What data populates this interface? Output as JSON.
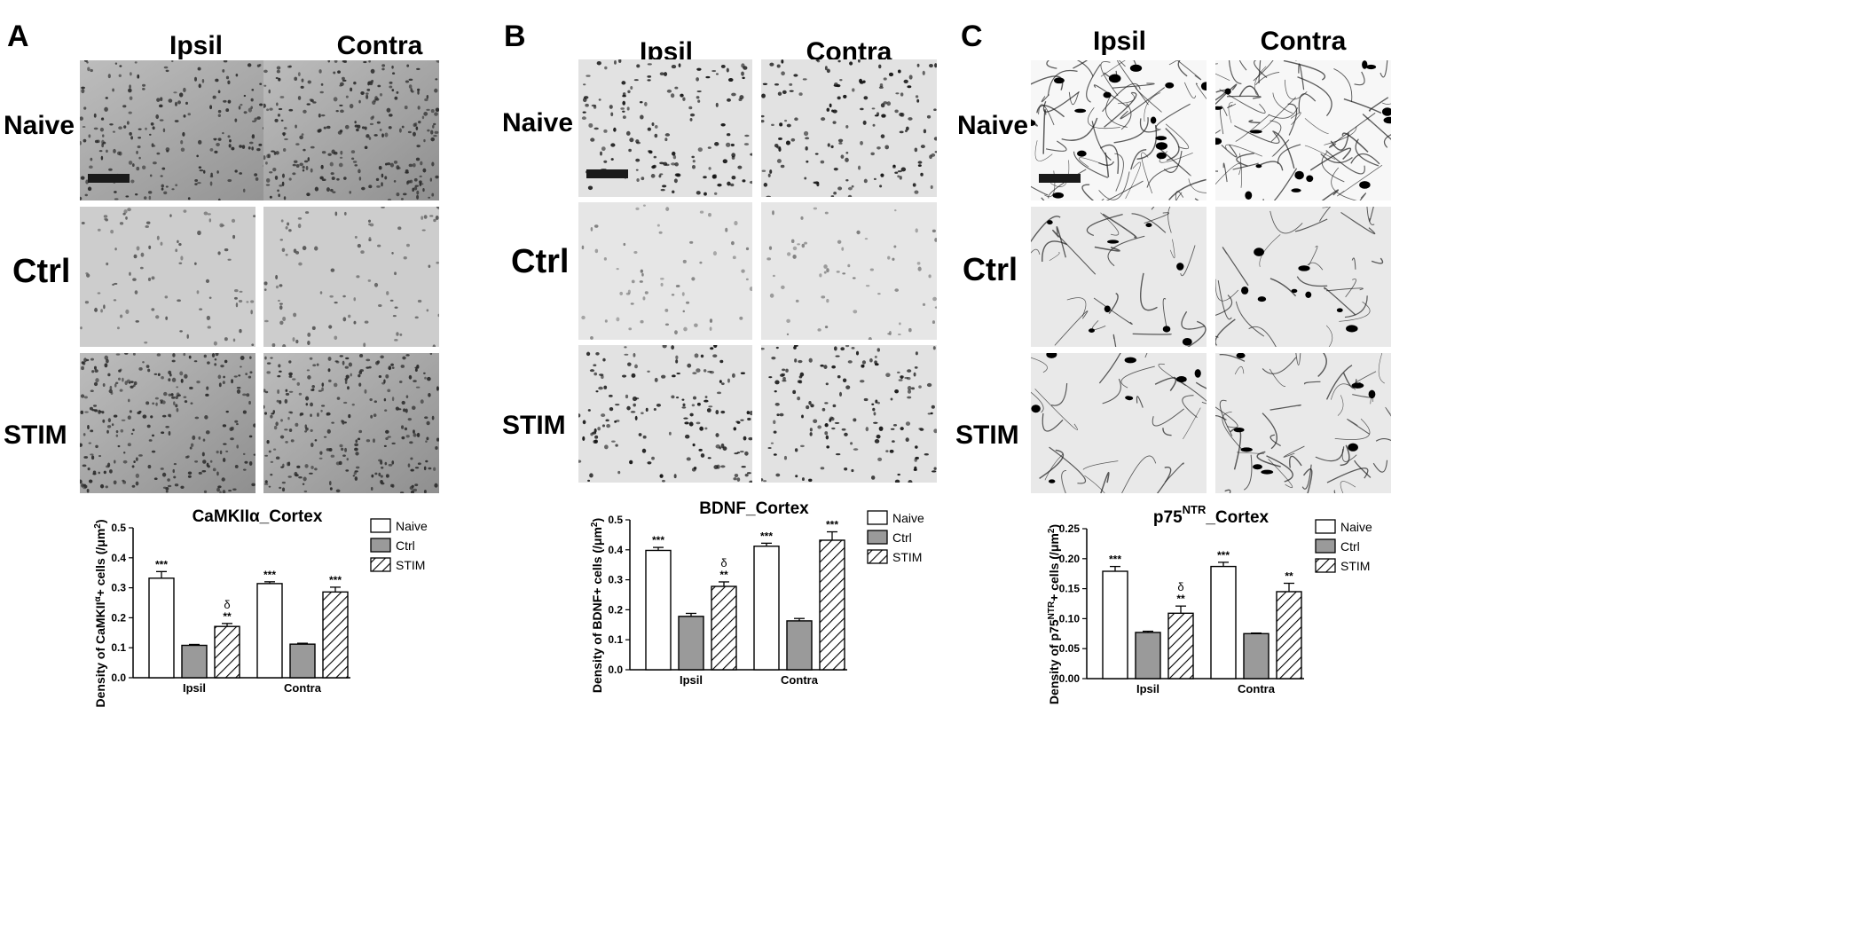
{
  "figure": {
    "panels": [
      {
        "letter": "A",
        "column_headers": [
          "Ipsil",
          "Contra"
        ],
        "row_labels": [
          "Naive",
          "Ctrl",
          "STIM"
        ],
        "tone": "gray"
      },
      {
        "letter": "B",
        "column_headers": [
          "Ipsil",
          "Contra"
        ],
        "row_labels": [
          "Naive",
          "Ctrl",
          "STIM"
        ],
        "tone": "light"
      },
      {
        "letter": "C",
        "column_headers": [
          "Ipsil",
          "Contra"
        ],
        "row_labels": [
          "Naive",
          "Ctrl",
          "STIM"
        ],
        "tone": "fibers"
      }
    ]
  },
  "chart_data": [
    {
      "type": "bar",
      "title": "CaMKIIα_Cortex",
      "ylabel": "Density of CaMKIIα+ cells (/μm²)",
      "ylabel_parts": [
        "Density of CaMKII",
        "α",
        "+ cells (/",
        "μ",
        "m",
        "2",
        ")"
      ],
      "categories": [
        "Ipsil",
        "Contra"
      ],
      "ylim": [
        0,
        0.5
      ],
      "yticks": [
        "0.0",
        "0.1",
        "0.2",
        "0.3",
        "0.4",
        "0.5"
      ],
      "legend": [
        "Naive",
        "Ctrl",
        "STIM"
      ],
      "legend_position": "top-right",
      "series": [
        {
          "name": "Naive",
          "values": [
            0.332,
            0.314
          ],
          "errors": [
            0.022,
            0.006
          ],
          "annotations": [
            "***",
            "***"
          ]
        },
        {
          "name": "Ctrl",
          "values": [
            0.108,
            0.112
          ],
          "errors": [
            0.003,
            0.003
          ],
          "annotations": [
            "",
            ""
          ]
        },
        {
          "name": "STIM",
          "values": [
            0.171,
            0.286
          ],
          "errors": [
            0.01,
            0.016
          ],
          "annotations": [
            "**",
            "***"
          ],
          "delta": [
            "δ",
            ""
          ]
        }
      ]
    },
    {
      "type": "bar",
      "title": "BDNF_Cortex",
      "ylabel": "Density of BDNF+ cells (/μm²)",
      "ylabel_parts": [
        "Density of BDNF+ cells (/",
        "",
        "",
        "μ",
        "m",
        "2",
        ")"
      ],
      "categories": [
        "Ipsil",
        "Contra"
      ],
      "ylim": [
        0,
        0.5
      ],
      "yticks": [
        "0.0",
        "0.1",
        "0.2",
        "0.3",
        "0.4",
        "0.5"
      ],
      "legend": [
        "Naive",
        "Ctrl",
        "STIM"
      ],
      "legend_position": "top-right",
      "series": [
        {
          "name": "Naive",
          "values": [
            0.398,
            0.412
          ],
          "errors": [
            0.01,
            0.01
          ],
          "annotations": [
            "***",
            "***"
          ]
        },
        {
          "name": "Ctrl",
          "values": [
            0.178,
            0.163
          ],
          "errors": [
            0.01,
            0.008
          ],
          "annotations": [
            "",
            ""
          ]
        },
        {
          "name": "STIM",
          "values": [
            0.278,
            0.432
          ],
          "errors": [
            0.015,
            0.028
          ],
          "annotations": [
            "**",
            "***"
          ],
          "delta": [
            "δ",
            ""
          ]
        }
      ]
    },
    {
      "type": "bar",
      "title": "p75NTR_Cortex",
      "title_parts": [
        "p75",
        "NTR",
        "_Cortex"
      ],
      "ylabel": "Density of p75NTR+ cells (/μm²)",
      "ylabel_parts": [
        "Density of p75",
        "NTR",
        "+ cells (/",
        "μ",
        "m",
        "2",
        ")"
      ],
      "categories": [
        "Ipsil",
        "Contra"
      ],
      "ylim": [
        0,
        0.25
      ],
      "yticks": [
        "0.00",
        "0.05",
        "0.10",
        "0.15",
        "0.20",
        "0.25"
      ],
      "legend": [
        "Naive",
        "Ctrl",
        "STIM"
      ],
      "legend_position": "top-right",
      "series": [
        {
          "name": "Naive",
          "values": [
            0.179,
            0.187
          ],
          "errors": [
            0.008,
            0.007
          ],
          "annotations": [
            "***",
            "***"
          ]
        },
        {
          "name": "Ctrl",
          "values": [
            0.077,
            0.075
          ],
          "errors": [
            0.002,
            0.001
          ],
          "annotations": [
            "",
            ""
          ]
        },
        {
          "name": "STIM",
          "values": [
            0.109,
            0.145
          ],
          "errors": [
            0.012,
            0.014
          ],
          "annotations": [
            "**",
            "**"
          ],
          "delta": [
            "δ",
            ""
          ]
        }
      ]
    }
  ],
  "colors": {
    "naive_fill": "#ffffff",
    "ctrl_fill": "#9a9a9a",
    "stim_hatch": "#000000"
  }
}
